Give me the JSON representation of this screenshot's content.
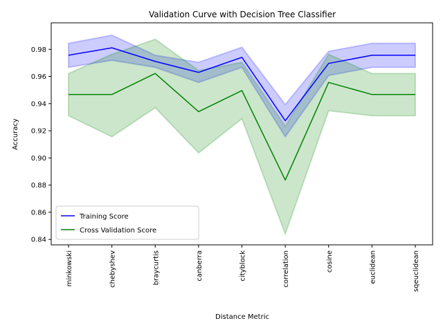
{
  "chart_data": {
    "type": "line",
    "title": "Validation Curve with Decision Tree Classifier",
    "xlabel": "Distance Metric",
    "ylabel": "Accuracy",
    "categories": [
      "minkowski",
      "chebyshev",
      "braycurtis",
      "canberra",
      "cityblock",
      "correlation",
      "cosine",
      "euclidean",
      "sqeuclidean"
    ],
    "ylim": [
      0.836,
      0.9995
    ],
    "yticks": [
      "0.84",
      "0.86",
      "0.88",
      "0.90",
      "0.92",
      "0.94",
      "0.96",
      "0.98"
    ],
    "grid": false,
    "legend_position": "lower-left",
    "series": [
      {
        "name": "Training Score",
        "color": "#0000ff",
        "values": [
          0.9756,
          0.9811,
          0.9711,
          0.963,
          0.9741,
          0.9274,
          0.9696,
          0.9756,
          0.9756
        ],
        "band_upper": [
          0.9844,
          0.9904,
          0.9756,
          0.9704,
          0.9815,
          0.9393,
          0.9785,
          0.9844,
          0.9844
        ],
        "band_lower": [
          0.9667,
          0.9719,
          0.9667,
          0.9556,
          0.9667,
          0.9156,
          0.9607,
          0.9667,
          0.9667
        ],
        "band_color": "#0000ff"
      },
      {
        "name": "Cross Validation Score",
        "color": "#008000",
        "values": [
          0.9467,
          0.9467,
          0.9622,
          0.9341,
          0.9496,
          0.8837,
          0.9556,
          0.9467,
          0.9467
        ],
        "band_upper": [
          0.9622,
          0.9763,
          0.9874,
          0.9644,
          0.9704,
          0.9233,
          0.9763,
          0.9622,
          0.9622
        ],
        "band_lower": [
          0.9311,
          0.9156,
          0.937,
          0.9037,
          0.9289,
          0.8441,
          0.9348,
          0.9311,
          0.9311
        ],
        "band_color": "#008000"
      }
    ]
  }
}
